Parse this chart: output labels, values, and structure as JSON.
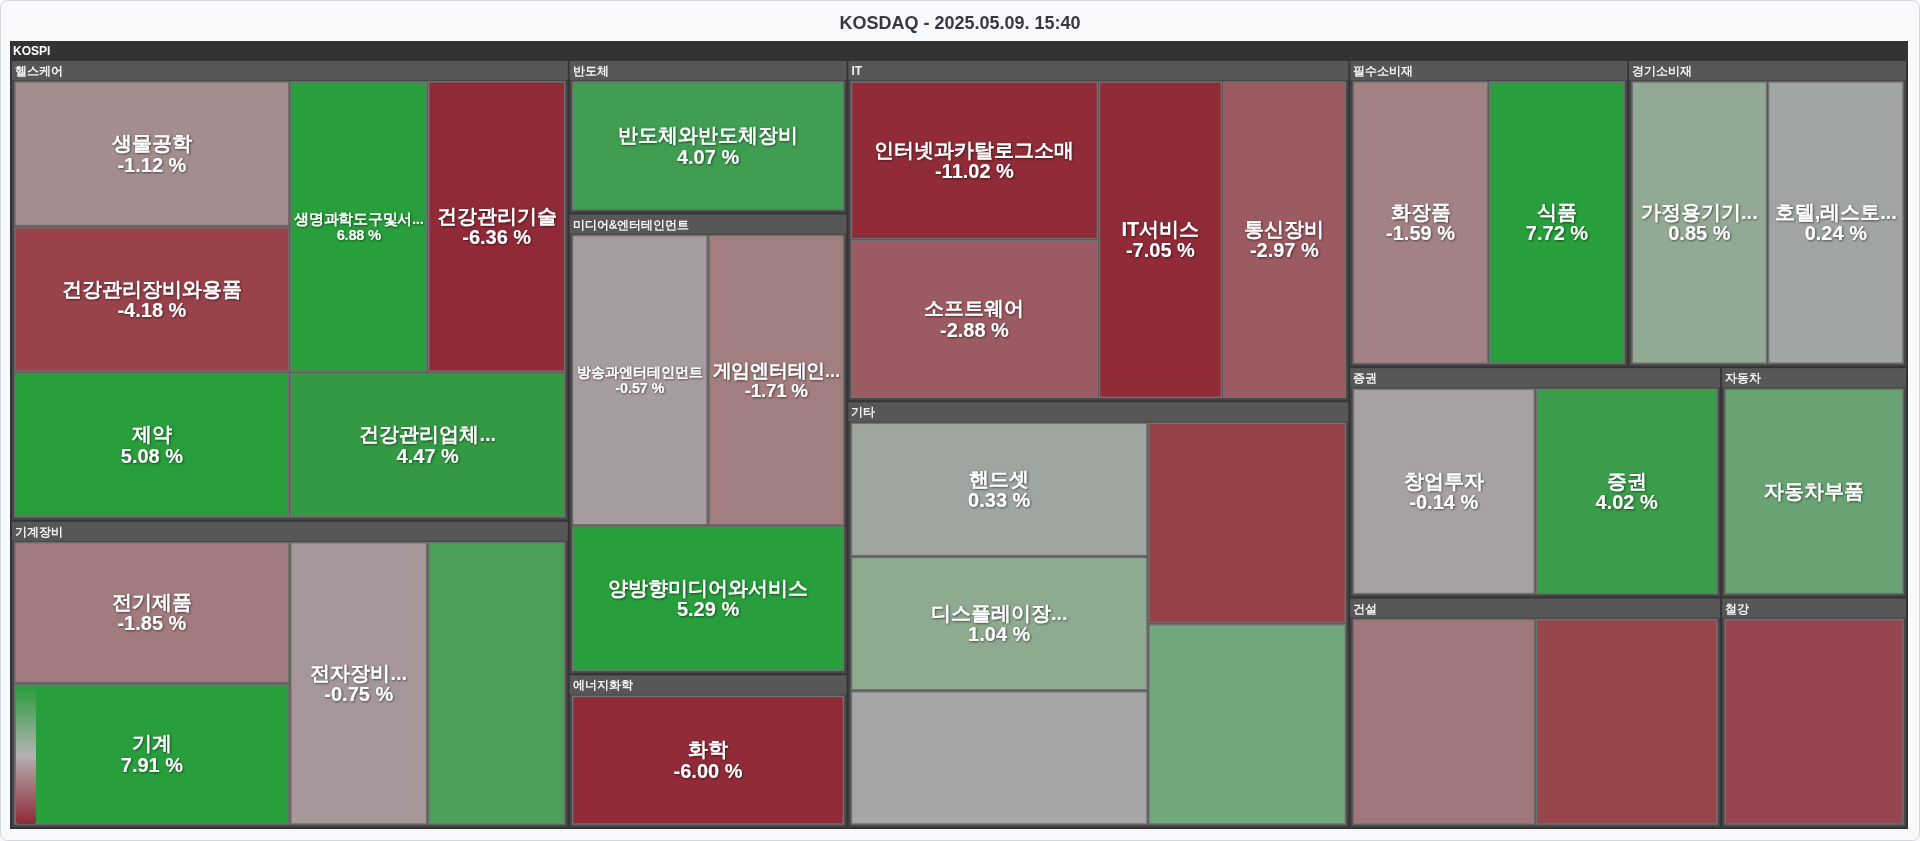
{
  "chart_data": {
    "type": "other",
    "title": "KOSDAQ - 2025.05.09. 15:40",
    "subtitle": "KOSPI",
    "categories": [
      "생물공학",
      "건강관리장비와용품",
      "제약",
      "생명과학도구및서...",
      "건강관리기술",
      "건강관리업체...",
      "전기제품",
      "기계",
      "전자장비...",
      null,
      "반도체와반도체장비",
      "방송과엔터테인먼트",
      "게임엔터테인...",
      "양방향미디어와서비스",
      "화학",
      "인터넷과카탈로그소매",
      "소프트웨어",
      "IT서비스",
      "통신장비",
      "핸드셋",
      "디스플레이장...",
      null,
      null,
      null,
      "화장품",
      "식품",
      "가정용기기...",
      "호텔,레스토...",
      "창업투자",
      "증권",
      null,
      null,
      "자동차부품",
      null
    ],
    "series": [
      {
        "name": "헬스케어",
        "values": [
          -1.12,
          -4.18,
          5.08,
          6.88,
          -6.36,
          4.47,
          null,
          null,
          null,
          null,
          null,
          null,
          null,
          null,
          null,
          null,
          null,
          null,
          null,
          null,
          null,
          null,
          null,
          null,
          null,
          null,
          null,
          null,
          null,
          null,
          null,
          null,
          null,
          null
        ],
        "value_labels": [
          "-1.12 %",
          "-4.18 %",
          "5.08 %",
          "6.88 %",
          "-6.36 %",
          "4.47 %",
          null,
          null,
          null,
          null,
          null,
          null,
          null,
          null,
          null,
          null,
          null,
          null,
          null,
          null,
          null,
          null,
          null,
          null,
          null,
          null,
          null,
          null,
          null,
          null,
          null,
          null,
          null,
          null
        ],
        "colors": [
          "#a38d8f",
          "#99424b",
          "#289e3c",
          "#289e3c",
          "#8f2a36",
          "#339a43",
          null,
          null,
          null,
          null,
          null,
          null,
          null,
          null,
          null,
          null,
          null,
          null,
          null,
          null,
          null,
          null,
          null,
          null,
          null,
          null,
          null,
          null,
          null,
          null,
          null,
          null,
          null,
          null
        ]
      },
      {
        "name": "기계장비",
        "values": [
          null,
          null,
          null,
          null,
          null,
          null,
          -1.85,
          7.91,
          -0.75,
          null,
          null,
          null,
          null,
          null,
          null,
          null,
          null,
          null,
          null,
          null,
          null,
          null,
          null,
          null,
          null,
          null,
          null,
          null,
          null,
          null,
          null,
          null,
          null,
          null
        ],
        "value_labels": [
          null,
          null,
          null,
          null,
          null,
          null,
          "-1.85 %",
          "7.91 %",
          "-0.75 %",
          null,
          null,
          null,
          null,
          null,
          null,
          null,
          null,
          null,
          null,
          null,
          null,
          null,
          null,
          null,
          null,
          null,
          null,
          null,
          null,
          null,
          null,
          null,
          null,
          null
        ],
        "colors": [
          null,
          null,
          null,
          null,
          null,
          null,
          "#a27b7e",
          "#289e3c",
          "#a59799",
          "#4ba05a",
          null,
          null,
          null,
          null,
          null,
          null,
          null,
          null,
          null,
          null,
          null,
          null,
          null,
          null,
          null,
          null,
          null,
          null,
          null,
          null,
          null,
          null,
          null,
          null
        ]
      },
      {
        "name": "반도체",
        "values": [
          null,
          null,
          null,
          null,
          null,
          null,
          null,
          null,
          null,
          null,
          4.07,
          null,
          null,
          null,
          null,
          null,
          null,
          null,
          null,
          null,
          null,
          null,
          null,
          null,
          null,
          null,
          null,
          null,
          null,
          null,
          null,
          null,
          null,
          null
        ],
        "value_labels": [
          null,
          null,
          null,
          null,
          null,
          null,
          null,
          null,
          null,
          null,
          "4.07 %",
          null,
          null,
          null,
          null,
          null,
          null,
          null,
          null,
          null,
          null,
          null,
          null,
          null,
          null,
          null,
          null,
          null,
          null,
          null,
          null,
          null,
          null,
          null
        ],
        "colors": [
          null,
          null,
          null,
          null,
          null,
          null,
          null,
          null,
          null,
          null,
          "#3f9e51",
          null,
          null,
          null,
          null,
          null,
          null,
          null,
          null,
          null,
          null,
          null,
          null,
          null,
          null,
          null,
          null,
          null,
          null,
          null,
          null,
          null,
          null,
          null
        ]
      },
      {
        "name": "미디어&엔터테인먼트",
        "values": [
          null,
          null,
          null,
          null,
          null,
          null,
          null,
          null,
          null,
          null,
          null,
          -0.57,
          -1.71,
          5.29,
          null,
          null,
          null,
          null,
          null,
          null,
          null,
          null,
          null,
          null,
          null,
          null,
          null,
          null,
          null,
          null,
          null,
          null,
          null,
          null
        ],
        "value_labels": [
          null,
          null,
          null,
          null,
          null,
          null,
          null,
          null,
          null,
          null,
          null,
          "-0.57 %",
          "-1.71 %",
          "5.29 %",
          null,
          null,
          null,
          null,
          null,
          null,
          null,
          null,
          null,
          null,
          null,
          null,
          null,
          null,
          null,
          null,
          null,
          null,
          null,
          null
        ],
        "colors": [
          null,
          null,
          null,
          null,
          null,
          null,
          null,
          null,
          null,
          null,
          null,
          "#a89d9e",
          "#a37e81",
          "#289e3c",
          null,
          null,
          null,
          null,
          null,
          null,
          null,
          null,
          null,
          null,
          null,
          null,
          null,
          null,
          null,
          null,
          null,
          null,
          null,
          null
        ]
      },
      {
        "name": "에너지화학",
        "values": [
          null,
          null,
          null,
          null,
          null,
          null,
          null,
          null,
          null,
          null,
          null,
          null,
          null,
          null,
          -6.0,
          null,
          null,
          null,
          null,
          null,
          null,
          null,
          null,
          null,
          null,
          null,
          null,
          null,
          null,
          null,
          null,
          null,
          null,
          null
        ],
        "value_labels": [
          null,
          null,
          null,
          null,
          null,
          null,
          null,
          null,
          null,
          null,
          null,
          null,
          null,
          null,
          "-6.00 %",
          null,
          null,
          null,
          null,
          null,
          null,
          null,
          null,
          null,
          null,
          null,
          null,
          null,
          null,
          null,
          null,
          null,
          null,
          null
        ],
        "colors": [
          null,
          null,
          null,
          null,
          null,
          null,
          null,
          null,
          null,
          null,
          null,
          null,
          null,
          null,
          "#902b37",
          null,
          null,
          null,
          null,
          null,
          null,
          null,
          null,
          null,
          null,
          null,
          null,
          null,
          null,
          null,
          null,
          null,
          null,
          null
        ]
      },
      {
        "name": "IT",
        "values": [
          null,
          null,
          null,
          null,
          null,
          null,
          null,
          null,
          null,
          null,
          null,
          null,
          null,
          null,
          null,
          -11.02,
          -2.88,
          -7.05,
          -2.97,
          null,
          null,
          null,
          null,
          null,
          null,
          null,
          null,
          null,
          null,
          null,
          null,
          null,
          null,
          null
        ],
        "value_labels": [
          null,
          null,
          null,
          null,
          null,
          null,
          null,
          null,
          null,
          null,
          null,
          null,
          null,
          null,
          null,
          "-11.02 %",
          "-2.88 %",
          "-7.05 %",
          "-2.97 %",
          null,
          null,
          null,
          null,
          null,
          null,
          null,
          null,
          null,
          null,
          null,
          null,
          null,
          null,
          null
        ],
        "colors": [
          null,
          null,
          null,
          null,
          null,
          null,
          null,
          null,
          null,
          null,
          null,
          null,
          null,
          null,
          null,
          "#902b37",
          "#9c5b62",
          "#902b37",
          "#9c5a61",
          null,
          null,
          null,
          null,
          null,
          null,
          null,
          null,
          null,
          null,
          null,
          null,
          null,
          null,
          null
        ]
      },
      {
        "name": "기타",
        "values": [
          null,
          null,
          null,
          null,
          null,
          null,
          null,
          null,
          null,
          null,
          null,
          null,
          null,
          null,
          null,
          null,
          null,
          null,
          null,
          0.33,
          1.04,
          null,
          null,
          null,
          null,
          null,
          null,
          null,
          null,
          null,
          null,
          null,
          null,
          null
        ],
        "value_labels": [
          null,
          null,
          null,
          null,
          null,
          null,
          null,
          null,
          null,
          null,
          null,
          null,
          null,
          null,
          null,
          null,
          null,
          null,
          null,
          "0.33 %",
          "1.04 %",
          null,
          null,
          null,
          null,
          null,
          null,
          null,
          null,
          null,
          null,
          null,
          null,
          null
        ],
        "colors": [
          null,
          null,
          null,
          null,
          null,
          null,
          null,
          null,
          null,
          null,
          null,
          null,
          null,
          null,
          null,
          null,
          null,
          null,
          null,
          "#9fa69f",
          "#8eaa8f",
          "#a6a6a6",
          "#96414a",
          "#72a77b",
          null,
          null,
          null,
          null,
          null,
          null,
          null,
          null,
          null,
          null
        ]
      },
      {
        "name": "필수소비재",
        "values": [
          null,
          null,
          null,
          null,
          null,
          null,
          null,
          null,
          null,
          null,
          null,
          null,
          null,
          null,
          null,
          null,
          null,
          null,
          null,
          null,
          null,
          null,
          null,
          null,
          -1.59,
          7.72,
          null,
          null,
          null,
          null,
          null,
          null,
          null,
          null
        ],
        "value_labels": [
          null,
          null,
          null,
          null,
          null,
          null,
          null,
          null,
          null,
          null,
          null,
          null,
          null,
          null,
          null,
          null,
          null,
          null,
          null,
          null,
          null,
          null,
          null,
          null,
          "-1.59 %",
          "7.72 %",
          null,
          null,
          null,
          null,
          null,
          null,
          null,
          null
        ],
        "colors": [
          null,
          null,
          null,
          null,
          null,
          null,
          null,
          null,
          null,
          null,
          null,
          null,
          null,
          null,
          null,
          null,
          null,
          null,
          null,
          null,
          null,
          null,
          null,
          null,
          "#a38285",
          "#289e3c",
          null,
          null,
          null,
          null,
          null,
          null,
          null,
          null
        ]
      },
      {
        "name": "경기소비재",
        "values": [
          null,
          null,
          null,
          null,
          null,
          null,
          null,
          null,
          null,
          null,
          null,
          null,
          null,
          null,
          null,
          null,
          null,
          null,
          null,
          null,
          null,
          null,
          null,
          null,
          null,
          null,
          0.85,
          0.24,
          null,
          null,
          null,
          null,
          null,
          null
        ],
        "value_labels": [
          null,
          null,
          null,
          null,
          null,
          null,
          null,
          null,
          null,
          null,
          null,
          null,
          null,
          null,
          null,
          null,
          null,
          null,
          null,
          null,
          null,
          null,
          null,
          null,
          null,
          null,
          "0.85 %",
          "0.24 %",
          null,
          null,
          null,
          null,
          null,
          null
        ],
        "colors": [
          null,
          null,
          null,
          null,
          null,
          null,
          null,
          null,
          null,
          null,
          null,
          null,
          null,
          null,
          null,
          null,
          null,
          null,
          null,
          null,
          null,
          null,
          null,
          null,
          null,
          null,
          "#92a994",
          "#a1a5a1",
          null,
          null,
          null,
          null,
          null,
          null
        ]
      },
      {
        "name": "증권",
        "values": [
          null,
          null,
          null,
          null,
          null,
          null,
          null,
          null,
          null,
          null,
          null,
          null,
          null,
          null,
          null,
          null,
          null,
          null,
          null,
          null,
          null,
          null,
          null,
          null,
          null,
          null,
          null,
          null,
          -0.14,
          4.02,
          null,
          null,
          null,
          null
        ],
        "value_labels": [
          null,
          null,
          null,
          null,
          null,
          null,
          null,
          null,
          null,
          null,
          null,
          null,
          null,
          null,
          null,
          null,
          null,
          null,
          null,
          null,
          null,
          null,
          null,
          null,
          null,
          null,
          null,
          null,
          "-0.14 %",
          "4.02 %",
          null,
          null,
          null,
          null
        ],
        "colors": [
          null,
          null,
          null,
          null,
          null,
          null,
          null,
          null,
          null,
          null,
          null,
          null,
          null,
          null,
          null,
          null,
          null,
          null,
          null,
          null,
          null,
          null,
          null,
          null,
          null,
          null,
          null,
          null,
          "#a6a2a2",
          "#3a9d4a",
          null,
          null,
          null,
          null
        ]
      },
      {
        "name": "건설",
        "values": [
          null,
          null,
          null,
          null,
          null,
          null,
          null,
          null,
          null,
          null,
          null,
          null,
          null,
          null,
          null,
          null,
          null,
          null,
          null,
          null,
          null,
          null,
          null,
          null,
          null,
          null,
          null,
          null,
          null,
          null,
          null,
          null,
          null,
          null
        ],
        "colors": [
          null,
          null,
          null,
          null,
          null,
          null,
          null,
          null,
          null,
          null,
          null,
          null,
          null,
          null,
          null,
          null,
          null,
          null,
          null,
          null,
          null,
          null,
          null,
          null,
          null,
          null,
          null,
          null,
          null,
          null,
          "#a0787c",
          "#98464e",
          null,
          null
        ]
      },
      {
        "name": "자동차",
        "values": [
          null,
          null,
          null,
          null,
          null,
          null,
          null,
          null,
          null,
          null,
          null,
          null,
          null,
          null,
          null,
          null,
          null,
          null,
          null,
          null,
          null,
          null,
          null,
          null,
          null,
          null,
          null,
          null,
          null,
          null,
          null,
          null,
          null,
          null
        ],
        "colors": [
          null,
          null,
          null,
          null,
          null,
          null,
          null,
          null,
          null,
          null,
          null,
          null,
          null,
          null,
          null,
          null,
          null,
          null,
          null,
          null,
          null,
          null,
          null,
          null,
          null,
          null,
          null,
          null,
          null,
          null,
          null,
          null,
          "#6aa373",
          null
        ]
      },
      {
        "name": "철강",
        "values": [
          null,
          null,
          null,
          null,
          null,
          null,
          null,
          null,
          null,
          null,
          null,
          null,
          null,
          null,
          null,
          null,
          null,
          null,
          null,
          null,
          null,
          null,
          null,
          null,
          null,
          null,
          null,
          null,
          null,
          null,
          null,
          null,
          null,
          null
        ],
        "colors": [
          null,
          null,
          null,
          null,
          null,
          null,
          null,
          null,
          null,
          null,
          null,
          null,
          null,
          null,
          null,
          null,
          null,
          null,
          null,
          null,
          null,
          null,
          null,
          null,
          null,
          null,
          null,
          null,
          null,
          null,
          null,
          null,
          null,
          "#974650"
        ]
      }
    ]
  }
}
